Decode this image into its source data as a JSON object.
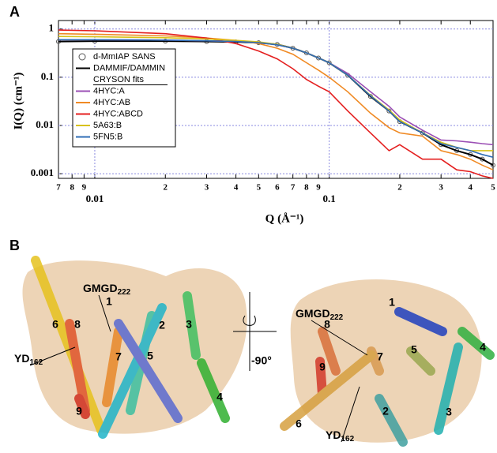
{
  "panel_labels": [
    "A",
    "B"
  ],
  "chart_data": {
    "type": "line",
    "xlabel": "Q (Å⁻¹)",
    "ylabel": "I(Q) (cm⁻¹)",
    "log_x": true,
    "log_y": true,
    "grid": true,
    "x": [
      0.007,
      0.01,
      0.02,
      0.03,
      0.04,
      0.05,
      0.06,
      0.07,
      0.08,
      0.09,
      0.1,
      0.12,
      0.15,
      0.18,
      0.2,
      0.25,
      0.3,
      0.35,
      0.4,
      0.45,
      0.5
    ],
    "xlim": [
      0.007,
      0.5
    ],
    "ylim": [
      0.0008,
      1.5
    ],
    "xticks": [
      {
        "value": 0.007,
        "label": "7"
      },
      {
        "value": 0.008,
        "label": "8"
      },
      {
        "value": 0.009,
        "label": "9"
      },
      0.01,
      {
        "value": 0.02,
        "label": "2"
      },
      {
        "value": 0.03,
        "label": "3"
      },
      {
        "value": 0.04,
        "label": "4"
      },
      {
        "value": 0.05,
        "label": "5"
      },
      {
        "value": 0.06,
        "label": "6"
      },
      {
        "value": 0.07,
        "label": "7"
      },
      {
        "value": 0.08,
        "label": "8"
      },
      {
        "value": 0.09,
        "label": "9"
      },
      0.1,
      {
        "value": 0.2,
        "label": "2"
      },
      {
        "value": 0.3,
        "label": "3"
      },
      {
        "value": 0.4,
        "label": "4"
      },
      {
        "value": 0.5,
        "label": "5"
      }
    ],
    "yticks": [
      0.001,
      0.01,
      0.1,
      1
    ],
    "legend_heading": "CRYSON fits",
    "series": [
      {
        "name": "d-MmIAP SANS",
        "style": "points",
        "color": "#555555",
        "values": [
          0.55,
          0.56,
          0.56,
          0.55,
          0.54,
          0.52,
          0.48,
          0.4,
          0.32,
          0.25,
          0.2,
          0.11,
          0.04,
          0.02,
          0.012,
          0.007,
          0.004,
          0.003,
          0.0025,
          0.002,
          0.0015
        ]
      },
      {
        "name": "DAMMIF/DAMMIN",
        "color": "#000000",
        "values": [
          0.55,
          0.56,
          0.56,
          0.55,
          0.54,
          0.52,
          0.48,
          0.4,
          0.32,
          0.25,
          0.2,
          0.11,
          0.04,
          0.02,
          0.012,
          0.007,
          0.004,
          0.003,
          0.0025,
          0.002,
          0.0015
        ]
      },
      {
        "name": "4HYC:A",
        "color": "#9b4fb5",
        "values": [
          0.6,
          0.6,
          0.59,
          0.57,
          0.55,
          0.52,
          0.47,
          0.4,
          0.32,
          0.25,
          0.2,
          0.12,
          0.05,
          0.025,
          0.015,
          0.008,
          0.005,
          0.0048,
          0.0045,
          0.0042,
          0.004
        ]
      },
      {
        "name": "4HYC:AB",
        "color": "#f08a24",
        "values": [
          0.8,
          0.78,
          0.72,
          0.65,
          0.58,
          0.5,
          0.4,
          0.3,
          0.2,
          0.14,
          0.1,
          0.05,
          0.018,
          0.009,
          0.007,
          0.006,
          0.003,
          0.0025,
          0.002,
          0.0015,
          0.0012
        ]
      },
      {
        "name": "4HYC:ABCD",
        "color": "#e41f1f",
        "values": [
          0.95,
          0.92,
          0.8,
          0.65,
          0.5,
          0.35,
          0.24,
          0.15,
          0.09,
          0.065,
          0.05,
          0.02,
          0.007,
          0.003,
          0.004,
          0.002,
          0.002,
          0.0012,
          0.0011,
          0.0009,
          0.0008
        ]
      },
      {
        "name": "5A63:B",
        "color": "#d8c21a",
        "values": [
          0.7,
          0.69,
          0.66,
          0.62,
          0.58,
          0.54,
          0.48,
          0.4,
          0.32,
          0.25,
          0.2,
          0.11,
          0.042,
          0.021,
          0.013,
          0.007,
          0.0045,
          0.0035,
          0.003,
          0.003,
          0.003
        ]
      },
      {
        "name": "5FN5:B",
        "color": "#2f6db5",
        "values": [
          0.6,
          0.6,
          0.59,
          0.57,
          0.55,
          0.52,
          0.47,
          0.4,
          0.32,
          0.25,
          0.2,
          0.11,
          0.041,
          0.02,
          0.012,
          0.007,
          0.0042,
          0.0035,
          0.003,
          0.0025,
          0.0022
        ]
      }
    ]
  },
  "panel_b": {
    "left": {
      "helices": [
        "6",
        "8",
        "7",
        "5",
        "2",
        "3",
        "4",
        "1",
        "9"
      ],
      "motifs": [
        {
          "text": "GMGD",
          "sub": "222"
        },
        {
          "text": "YD",
          "sub": "162"
        }
      ]
    },
    "rotation": "-90°",
    "right": {
      "helices": [
        "1",
        "8",
        "9",
        "7",
        "5",
        "4",
        "6",
        "2",
        "3"
      ],
      "motifs": [
        {
          "text": "GMGD",
          "sub": "222"
        },
        {
          "text": "YD",
          "sub": "162"
        }
      ]
    }
  }
}
